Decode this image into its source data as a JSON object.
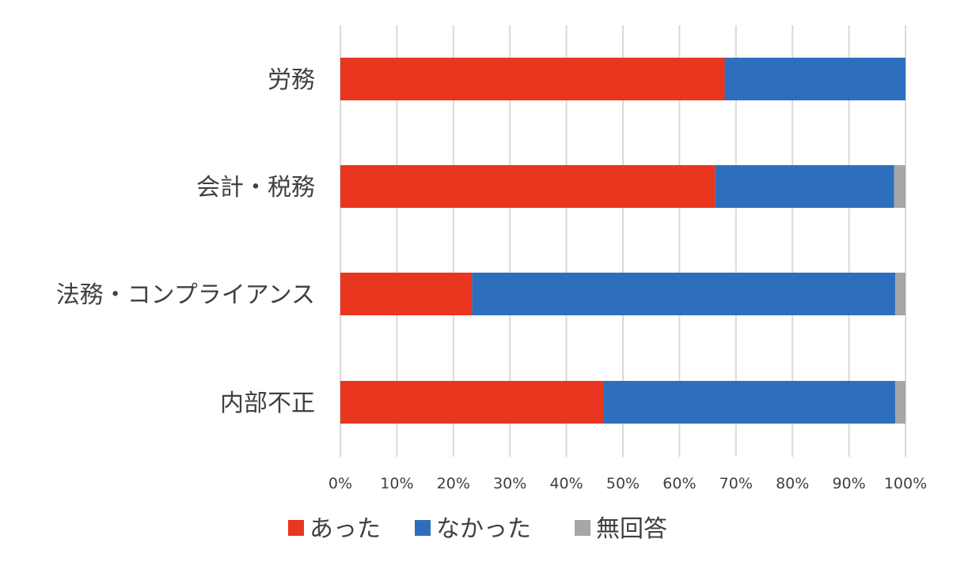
{
  "chart_data": {
    "type": "bar",
    "orientation": "horizontal",
    "stacked": "percent",
    "categories": [
      "労務",
      "会計・税務",
      "法務・コンプライアンス",
      "内部不正"
    ],
    "series": [
      {
        "name": "あった",
        "color": "#e8361f",
        "values": [
          68,
          66.3,
          23.3,
          46.5
        ]
      },
      {
        "name": "なかった",
        "color": "#2e6fbd",
        "values": [
          32,
          31.7,
          74.9,
          51.7
        ]
      },
      {
        "name": "無回答",
        "color": "#a6a6a6",
        "values": [
          0,
          2.0,
          1.8,
          1.8
        ]
      }
    ],
    "x_ticks": [
      "0%",
      "10%",
      "20%",
      "30%",
      "40%",
      "50%",
      "60%",
      "70%",
      "80%",
      "90%",
      "100%"
    ],
    "xlim": [
      0,
      100
    ],
    "grid": true,
    "legend_position": "bottom"
  }
}
